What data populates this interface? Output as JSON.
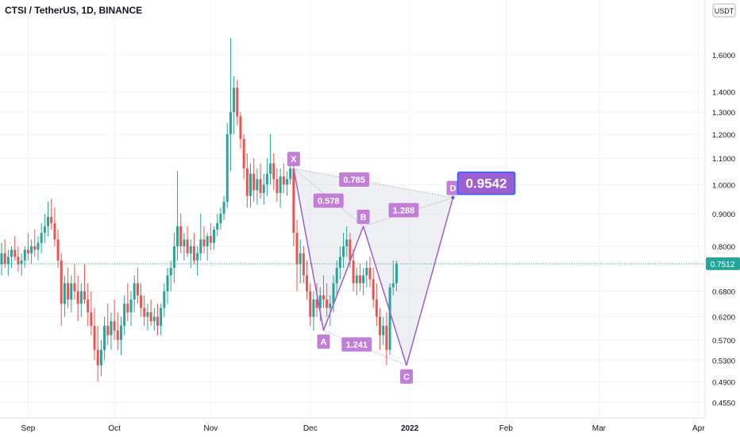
{
  "header": {
    "symbol_title": "CTSI / TetherUS, 1D, BINANCE",
    "currency_badge": "USDT"
  },
  "colors": {
    "up": "#26a69a",
    "down": "#ef5350",
    "pattern_line": "#9c5fd1",
    "pattern_fill": "#d1d4dc",
    "label_bg": "#c17fd9",
    "target_bg": "#9c5fd1",
    "target_border": "#2962ff",
    "price_line": "#26a69a"
  },
  "chart_data": {
    "type": "candlestick",
    "title": "CTSI / TetherUS, 1D, BINANCE",
    "y_scale": "log",
    "ylim": [
      0.43,
      1.95
    ],
    "x_tick_labels": [
      "Sep",
      "Oct",
      "Nov",
      "Dec",
      "2022",
      "Feb",
      "Mar",
      "Apr"
    ],
    "y_tick_values": [
      0.455,
      0.49,
      0.53,
      0.57,
      0.62,
      0.68,
      0.75,
      0.8,
      0.9,
      1.0,
      1.1,
      1.2,
      1.3,
      1.4,
      1.6
    ],
    "y_tick_labels": [
      "0.4550",
      "0.4900",
      "0.5300",
      "0.5700",
      "0.6200",
      "0.6800",
      "0.7500",
      "0.8000",
      "0.9000",
      "1.0000",
      "1.1000",
      "1.2000",
      "1.3000",
      "1.4000",
      "1.6000"
    ],
    "last_price": 0.7512,
    "last_price_label": "0.7512",
    "grid": true,
    "candles": {
      "fields": [
        "open",
        "high",
        "low",
        "close"
      ],
      "data": [
        [
          0.75,
          0.81,
          0.72,
          0.78
        ],
        [
          0.78,
          0.82,
          0.74,
          0.75
        ],
        [
          0.75,
          0.79,
          0.72,
          0.77
        ],
        [
          0.77,
          0.8,
          0.74,
          0.79
        ],
        [
          0.79,
          0.83,
          0.76,
          0.77
        ],
        [
          0.77,
          0.8,
          0.73,
          0.75
        ],
        [
          0.75,
          0.78,
          0.72,
          0.76
        ],
        [
          0.76,
          0.8,
          0.74,
          0.79
        ],
        [
          0.79,
          0.84,
          0.76,
          0.78
        ],
        [
          0.78,
          0.82,
          0.75,
          0.8
        ],
        [
          0.8,
          0.85,
          0.77,
          0.79
        ],
        [
          0.79,
          0.83,
          0.76,
          0.81
        ],
        [
          0.81,
          0.87,
          0.78,
          0.84
        ],
        [
          0.84,
          0.9,
          0.81,
          0.86
        ],
        [
          0.86,
          0.94,
          0.83,
          0.89
        ],
        [
          0.89,
          0.95,
          0.85,
          0.87
        ],
        [
          0.87,
          0.92,
          0.8,
          0.82
        ],
        [
          0.82,
          0.85,
          0.74,
          0.76
        ],
        [
          0.76,
          0.78,
          0.6,
          0.65
        ],
        [
          0.65,
          0.72,
          0.62,
          0.7
        ],
        [
          0.7,
          0.74,
          0.64,
          0.66
        ],
        [
          0.66,
          0.72,
          0.63,
          0.7
        ],
        [
          0.7,
          0.75,
          0.66,
          0.68
        ],
        [
          0.68,
          0.72,
          0.61,
          0.65
        ],
        [
          0.65,
          0.7,
          0.62,
          0.68
        ],
        [
          0.68,
          0.75,
          0.65,
          0.66
        ],
        [
          0.66,
          0.7,
          0.6,
          0.63
        ],
        [
          0.63,
          0.68,
          0.58,
          0.6
        ],
        [
          0.6,
          0.64,
          0.53,
          0.55
        ],
        [
          0.55,
          0.6,
          0.49,
          0.52
        ],
        [
          0.52,
          0.57,
          0.5,
          0.55
        ],
        [
          0.55,
          0.62,
          0.53,
          0.6
        ],
        [
          0.6,
          0.65,
          0.56,
          0.58
        ],
        [
          0.58,
          0.63,
          0.55,
          0.61
        ],
        [
          0.61,
          0.66,
          0.57,
          0.59
        ],
        [
          0.59,
          0.63,
          0.55,
          0.57
        ],
        [
          0.57,
          0.62,
          0.54,
          0.6
        ],
        [
          0.6,
          0.67,
          0.58,
          0.65
        ],
        [
          0.65,
          0.7,
          0.61,
          0.63
        ],
        [
          0.63,
          0.68,
          0.6,
          0.66
        ],
        [
          0.66,
          0.72,
          0.63,
          0.7
        ],
        [
          0.7,
          0.74,
          0.65,
          0.67
        ],
        [
          0.67,
          0.7,
          0.62,
          0.64
        ],
        [
          0.64,
          0.67,
          0.6,
          0.62
        ],
        [
          0.62,
          0.65,
          0.59,
          0.63
        ],
        [
          0.63,
          0.66,
          0.6,
          0.61
        ],
        [
          0.61,
          0.64,
          0.59,
          0.62
        ],
        [
          0.62,
          0.65,
          0.58,
          0.6
        ],
        [
          0.6,
          0.65,
          0.58,
          0.64
        ],
        [
          0.64,
          0.7,
          0.62,
          0.68
        ],
        [
          0.68,
          0.74,
          0.65,
          0.72
        ],
        [
          0.72,
          0.76,
          0.68,
          0.74
        ],
        [
          0.74,
          0.84,
          0.7,
          0.8
        ],
        [
          0.8,
          1.05,
          0.76,
          0.86
        ],
        [
          0.86,
          0.9,
          0.78,
          0.8
        ],
        [
          0.8,
          0.84,
          0.76,
          0.82
        ],
        [
          0.82,
          0.86,
          0.77,
          0.78
        ],
        [
          0.78,
          0.82,
          0.74,
          0.8
        ],
        [
          0.8,
          0.84,
          0.75,
          0.76
        ],
        [
          0.76,
          0.8,
          0.72,
          0.78
        ],
        [
          0.78,
          0.9,
          0.76,
          0.82
        ],
        [
          0.82,
          0.86,
          0.78,
          0.8
        ],
        [
          0.8,
          0.84,
          0.76,
          0.83
        ],
        [
          0.83,
          0.87,
          0.79,
          0.81
        ],
        [
          0.81,
          0.86,
          0.79,
          0.85
        ],
        [
          0.85,
          0.9,
          0.83,
          0.87
        ],
        [
          0.87,
          0.92,
          0.85,
          0.9
        ],
        [
          0.9,
          0.96,
          0.88,
          0.94
        ],
        [
          0.94,
          1.25,
          0.92,
          1.2
        ],
        [
          1.2,
          1.7,
          1.05,
          1.3
        ],
        [
          1.3,
          1.48,
          1.2,
          1.42
        ],
        [
          1.42,
          1.46,
          1.24,
          1.28
        ],
        [
          1.28,
          1.3,
          1.14,
          1.18
        ],
        [
          1.18,
          1.2,
          1.02,
          1.06
        ],
        [
          1.06,
          1.12,
          0.92,
          0.96
        ],
        [
          0.96,
          1.08,
          0.92,
          1.04
        ],
        [
          1.04,
          1.1,
          0.94,
          0.98
        ],
        [
          0.98,
          1.06,
          0.93,
          1.02
        ],
        [
          1.02,
          1.08,
          0.95,
          0.97
        ],
        [
          0.97,
          1.04,
          0.93,
          1.0
        ],
        [
          1.0,
          1.1,
          0.96,
          1.04
        ],
        [
          1.04,
          1.2,
          1.0,
          1.08
        ],
        [
          1.08,
          1.12,
          0.98,
          1.02
        ],
        [
          1.02,
          1.06,
          0.94,
          0.97
        ],
        [
          0.97,
          1.06,
          0.92,
          1.03
        ],
        [
          1.03,
          1.08,
          0.97,
          1.0
        ],
        [
          1.0,
          1.05,
          0.96,
          1.02
        ],
        [
          1.02,
          1.12,
          1.0,
          1.06
        ],
        [
          1.06,
          1.08,
          0.8,
          0.84
        ],
        [
          0.84,
          0.88,
          0.68,
          0.75
        ],
        [
          0.75,
          0.82,
          0.7,
          0.78
        ],
        [
          0.78,
          0.8,
          0.7,
          0.72
        ],
        [
          0.72,
          0.76,
          0.66,
          0.68
        ],
        [
          0.68,
          0.7,
          0.6,
          0.62
        ],
        [
          0.62,
          0.68,
          0.59,
          0.66
        ],
        [
          0.66,
          0.7,
          0.62,
          0.64
        ],
        [
          0.64,
          0.69,
          0.61,
          0.67
        ],
        [
          0.67,
          0.72,
          0.64,
          0.66
        ],
        [
          0.66,
          0.7,
          0.62,
          0.64
        ],
        [
          0.64,
          0.67,
          0.6,
          0.65
        ],
        [
          0.65,
          0.72,
          0.63,
          0.7
        ],
        [
          0.7,
          0.76,
          0.67,
          0.74
        ],
        [
          0.74,
          0.8,
          0.71,
          0.77
        ],
        [
          0.77,
          0.84,
          0.74,
          0.8
        ],
        [
          0.8,
          0.86,
          0.77,
          0.82
        ],
        [
          0.82,
          0.84,
          0.74,
          0.76
        ],
        [
          0.76,
          0.79,
          0.68,
          0.7
        ],
        [
          0.7,
          0.74,
          0.67,
          0.72
        ],
        [
          0.72,
          0.75,
          0.68,
          0.7
        ],
        [
          0.7,
          0.74,
          0.67,
          0.72
        ],
        [
          0.72,
          0.76,
          0.69,
          0.74
        ],
        [
          0.74,
          0.77,
          0.69,
          0.71
        ],
        [
          0.71,
          0.74,
          0.64,
          0.66
        ],
        [
          0.66,
          0.7,
          0.6,
          0.62
        ],
        [
          0.62,
          0.64,
          0.55,
          0.58
        ],
        [
          0.58,
          0.62,
          0.56,
          0.6
        ],
        [
          0.6,
          0.63,
          0.52,
          0.55
        ],
        [
          0.55,
          0.7,
          0.54,
          0.69
        ],
        [
          0.69,
          0.76,
          0.67,
          0.7
        ],
        [
          0.7,
          0.76,
          0.68,
          0.7512
        ]
      ]
    },
    "pattern": {
      "points": [
        {
          "name": "X",
          "index": 88,
          "price": 1.06
        },
        {
          "name": "A",
          "index": 97,
          "price": 0.59
        },
        {
          "name": "B",
          "index": 109,
          "price": 0.86
        },
        {
          "name": "C",
          "index": 122,
          "price": 0.52
        },
        {
          "name": "D",
          "index": 136,
          "price": 0.9542
        }
      ],
      "ratios": [
        {
          "label": "0.578",
          "from": "X",
          "to": "B"
        },
        {
          "label": "0.785",
          "from": "X",
          "to": "D"
        },
        {
          "label": "1.288",
          "from": "B",
          "to": "D"
        },
        {
          "label": "1.241",
          "from": "A",
          "to": "C"
        }
      ],
      "target_label": "0.9542"
    }
  }
}
